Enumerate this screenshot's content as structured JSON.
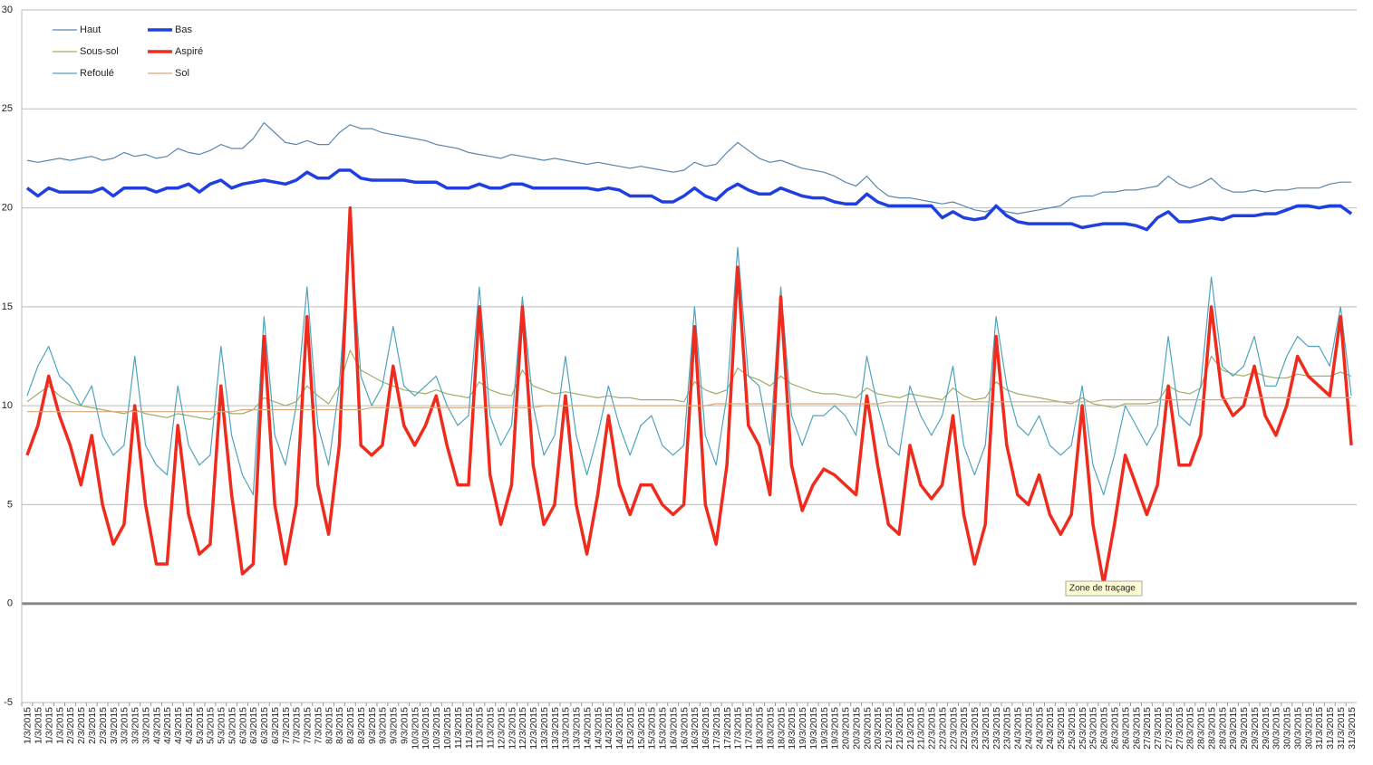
{
  "chart_data": {
    "type": "line",
    "tooltip": "Zone de traçage",
    "legend": "top-left",
    "grid": true,
    "ylim": [
      -5,
      30
    ],
    "yticks": [
      -5,
      0,
      5,
      10,
      15,
      20,
      25,
      30
    ],
    "categories": [
      "1/3/2015",
      "1/3/2015",
      "1/3/2015",
      "1/3/2015",
      "2/3/2015",
      "2/3/2015",
      "2/3/2015",
      "2/3/2015",
      "3/3/2015",
      "3/3/2015",
      "3/3/2015",
      "3/3/2015",
      "4/3/2015",
      "4/3/2015",
      "4/3/2015",
      "4/3/2015",
      "5/3/2015",
      "5/3/2015",
      "5/3/2015",
      "5/3/2015",
      "6/3/2015",
      "6/3/2015",
      "6/3/2015",
      "6/3/2015",
      "7/3/2015",
      "7/3/2015",
      "7/3/2015",
      "7/3/2015",
      "8/3/2015",
      "8/3/2015",
      "8/3/2015",
      "8/3/2015",
      "9/3/2015",
      "9/3/2015",
      "9/3/2015",
      "9/3/2015",
      "10/3/2015",
      "10/3/2015",
      "10/3/2015",
      "10/3/2015",
      "11/3/2015",
      "11/3/2015",
      "11/3/2015",
      "11/3/2015",
      "12/3/2015",
      "12/3/2015",
      "12/3/2015",
      "12/3/2015",
      "13/3/2015",
      "13/3/2015",
      "13/3/2015",
      "13/3/2015",
      "14/3/2015",
      "14/3/2015",
      "14/3/2015",
      "14/3/2015",
      "15/3/2015",
      "15/3/2015",
      "15/3/2015",
      "15/3/2015",
      "16/3/2015",
      "16/3/2015",
      "16/3/2015",
      "16/3/2015",
      "17/3/2015",
      "17/3/2015",
      "17/3/2015",
      "17/3/2015",
      "18/3/2015",
      "18/3/2015",
      "18/3/2015",
      "18/3/2015",
      "19/3/2015",
      "19/3/2015",
      "19/3/2015",
      "19/3/2015",
      "20/3/2015",
      "20/3/2015",
      "20/3/2015",
      "20/3/2015",
      "21/3/2015",
      "21/3/2015",
      "21/3/2015",
      "21/3/2015",
      "22/3/2015",
      "22/3/2015",
      "22/3/2015",
      "22/3/2015",
      "23/3/2015",
      "23/3/2015",
      "23/3/2015",
      "23/3/2015",
      "24/3/2015",
      "24/3/2015",
      "24/3/2015",
      "24/3/2015",
      "25/3/2015",
      "25/3/2015",
      "25/3/2015",
      "25/3/2015",
      "26/3/2015",
      "26/3/2015",
      "26/3/2015",
      "26/3/2015",
      "27/3/2015",
      "27/3/2015",
      "27/3/2015",
      "27/3/2015",
      "28/3/2015",
      "28/3/2015",
      "28/3/2015",
      "28/3/2015",
      "29/3/2015",
      "29/3/2015",
      "29/3/2015",
      "29/3/2015",
      "30/3/2015",
      "30/3/2015",
      "30/3/2015",
      "30/3/2015",
      "31/3/2015",
      "31/3/2015",
      "31/3/2015",
      "31/3/2015"
    ],
    "series": [
      {
        "name": "Haut",
        "color": "#5b87ad",
        "width": 1.2,
        "values": [
          22.4,
          22.3,
          22.4,
          22.5,
          22.4,
          22.5,
          22.6,
          22.4,
          22.5,
          22.8,
          22.6,
          22.7,
          22.5,
          22.6,
          23,
          22.8,
          22.7,
          22.9,
          23.2,
          23,
          23,
          23.5,
          24.3,
          23.8,
          23.3,
          23.2,
          23.4,
          23.2,
          23.2,
          23.8,
          24.2,
          24,
          24,
          23.8,
          23.7,
          23.6,
          23.5,
          23.4,
          23.2,
          23.1,
          23,
          22.8,
          22.7,
          22.6,
          22.5,
          22.7,
          22.6,
          22.5,
          22.4,
          22.5,
          22.4,
          22.3,
          22.2,
          22.3,
          22.2,
          22.1,
          22,
          22.1,
          22,
          21.9,
          21.8,
          21.9,
          22.3,
          22.1,
          22.2,
          22.8,
          23.3,
          22.9,
          22.5,
          22.3,
          22.4,
          22.2,
          22,
          21.9,
          21.8,
          21.6,
          21.3,
          21.1,
          21.6,
          21,
          20.6,
          20.5,
          20.5,
          20.4,
          20.3,
          20.2,
          20.3,
          20.1,
          19.9,
          19.8,
          20,
          19.8,
          19.7,
          19.8,
          19.9,
          20,
          20.1,
          20.5,
          20.6,
          20.6,
          20.8,
          20.8,
          20.9,
          20.9,
          21,
          21.1,
          21.6,
          21.2,
          21,
          21.2,
          21.5,
          21,
          20.8,
          20.8,
          20.9,
          20.8,
          20.9,
          20.9,
          21,
          21,
          21,
          21.2,
          21.3,
          21.3
        ]
      },
      {
        "name": "Bas",
        "color": "#1f3fe0",
        "width": 3.5,
        "values": [
          21,
          20.6,
          21,
          20.8,
          20.8,
          20.8,
          20.8,
          21,
          20.6,
          21,
          21,
          21,
          20.8,
          21,
          21,
          21.2,
          20.8,
          21.2,
          21.4,
          21,
          21.2,
          21.3,
          21.4,
          21.3,
          21.2,
          21.4,
          21.8,
          21.5,
          21.5,
          21.9,
          21.9,
          21.5,
          21.4,
          21.4,
          21.4,
          21.4,
          21.3,
          21.3,
          21.3,
          21,
          21,
          21,
          21.2,
          21,
          21,
          21.2,
          21.2,
          21,
          21,
          21,
          21,
          21,
          21,
          20.9,
          21,
          20.9,
          20.6,
          20.6,
          20.6,
          20.3,
          20.3,
          20.6,
          21,
          20.6,
          20.4,
          20.9,
          21.2,
          20.9,
          20.7,
          20.7,
          21,
          20.8,
          20.6,
          20.5,
          20.5,
          20.3,
          20.2,
          20.2,
          20.7,
          20.3,
          20.1,
          20.1,
          20.1,
          20.1,
          20.1,
          19.5,
          19.8,
          19.5,
          19.4,
          19.5,
          20.1,
          19.6,
          19.3,
          19.2,
          19.2,
          19.2,
          19.2,
          19.2,
          19,
          19.1,
          19.2,
          19.2,
          19.2,
          19.1,
          18.9,
          19.5,
          19.8,
          19.3,
          19.3,
          19.4,
          19.5,
          19.4,
          19.6,
          19.6,
          19.6,
          19.7,
          19.7,
          19.9,
          20.1,
          20.1,
          20,
          20.1,
          20.1,
          19.7
        ]
      },
      {
        "name": "Sous-sol",
        "color": "#9fae6a",
        "width": 1.2,
        "values": [
          10.2,
          10.6,
          11,
          10.5,
          10.2,
          10,
          9.9,
          9.8,
          9.7,
          9.6,
          9.8,
          9.6,
          9.5,
          9.4,
          9.6,
          9.5,
          9.4,
          9.3,
          9.8,
          9.6,
          9.6,
          9.8,
          10.4,
          10.2,
          10,
          10.2,
          11,
          10.5,
          10.1,
          11,
          12.8,
          11.8,
          11.5,
          11.2,
          11,
          10.8,
          10.7,
          10.6,
          10.8,
          10.6,
          10.5,
          10.4,
          11.2,
          10.8,
          10.6,
          10.5,
          11.8,
          11,
          10.8,
          10.6,
          10.7,
          10.6,
          10.5,
          10.4,
          10.5,
          10.4,
          10.4,
          10.3,
          10.3,
          10.3,
          10.3,
          10.2,
          11.2,
          10.8,
          10.6,
          10.8,
          11.9,
          11.5,
          11.3,
          11,
          11.5,
          11.1,
          10.9,
          10.7,
          10.6,
          10.6,
          10.5,
          10.4,
          10.9,
          10.6,
          10.5,
          10.4,
          10.6,
          10.5,
          10.4,
          10.3,
          10.9,
          10.5,
          10.3,
          10.4,
          11.2,
          10.8,
          10.6,
          10.5,
          10.4,
          10.3,
          10.2,
          10.1,
          10.4,
          10.1,
          10,
          9.9,
          10.1,
          10.1,
          10.1,
          10.2,
          11,
          10.7,
          10.6,
          10.9,
          12.5,
          11.8,
          11.6,
          11.5,
          11.7,
          11.5,
          11.4,
          11.4,
          11.6,
          11.5,
          11.5,
          11.5,
          11.7,
          11.5
        ]
      },
      {
        "name": "Aspiré",
        "color": "#ee2b1c",
        "width": 3.5,
        "values": [
          7.5,
          9,
          11.5,
          9.5,
          8,
          6,
          8.5,
          5,
          3,
          4,
          10,
          5,
          2,
          2,
          9,
          4.5,
          2.5,
          3,
          11,
          5.5,
          1.5,
          2,
          13.5,
          5,
          2,
          5,
          14.5,
          6,
          3.5,
          8,
          20,
          8,
          7.5,
          8,
          12,
          9,
          8,
          9,
          10.5,
          8,
          6,
          6,
          15,
          6.5,
          4,
          6,
          15,
          7,
          4,
          5,
          10.5,
          5,
          2.5,
          5.5,
          9.5,
          6,
          4.5,
          6,
          6,
          5,
          4.5,
          5,
          14,
          5,
          3,
          7,
          17,
          9,
          8,
          5.5,
          15.5,
          7,
          4.7,
          6,
          6.8,
          6.5,
          6,
          5.5,
          10.5,
          7,
          4,
          3.5,
          8,
          6,
          5.3,
          6,
          9.5,
          4.5,
          2,
          4,
          13.5,
          8,
          5.5,
          5,
          6.5,
          4.5,
          3.5,
          4.5,
          10,
          4,
          1,
          4,
          7.5,
          6,
          4.5,
          6,
          11,
          7,
          7,
          8.5,
          15,
          10.5,
          9.5,
          10,
          12,
          9.5,
          8.5,
          10,
          12.5,
          11.5,
          11,
          10.5,
          14.5,
          8
        ]
      },
      {
        "name": "Refoulé",
        "color": "#4fa3bd",
        "width": 1.2,
        "values": [
          10.5,
          12,
          13,
          11.5,
          11,
          10,
          11,
          8.5,
          7.5,
          8,
          12.5,
          8,
          7,
          6.5,
          11,
          8,
          7,
          7.5,
          13,
          8.5,
          6.5,
          5.5,
          14.5,
          8.5,
          7,
          10,
          16,
          9,
          7,
          11,
          19,
          11.5,
          10,
          11,
          14,
          11,
          10.5,
          11,
          11.5,
          10,
          9,
          9.5,
          16,
          9.5,
          8,
          9,
          15.5,
          10,
          7.5,
          8.5,
          12.5,
          8.5,
          6.5,
          8.5,
          11,
          9,
          7.5,
          9,
          9.5,
          8,
          7.5,
          8,
          15,
          8.5,
          7,
          10.5,
          18,
          11.5,
          11,
          8,
          16,
          9.5,
          8,
          9.5,
          9.5,
          10,
          9.5,
          8.5,
          12.5,
          10,
          8,
          7.5,
          11,
          9.5,
          8.5,
          9.5,
          12,
          8,
          6.5,
          8,
          14.5,
          11,
          9,
          8.5,
          9.5,
          8,
          7.5,
          8,
          11,
          7,
          5.5,
          7.5,
          10,
          9,
          8,
          9,
          13.5,
          9.5,
          9,
          11,
          16.5,
          12,
          11.5,
          12,
          13.5,
          11,
          11,
          12.5,
          13.5,
          13,
          13,
          12,
          15,
          10.5
        ]
      },
      {
        "name": "Sol",
        "color": "#d9a877",
        "width": 1.2,
        "values": [
          9.7,
          9.7,
          9.7,
          9.7,
          9.7,
          9.7,
          9.7,
          9.7,
          9.7,
          9.7,
          9.7,
          9.7,
          9.7,
          9.7,
          9.7,
          9.7,
          9.7,
          9.7,
          9.7,
          9.7,
          9.8,
          9.8,
          9.8,
          9.8,
          9.8,
          9.8,
          9.8,
          9.8,
          9.8,
          9.8,
          9.8,
          9.8,
          9.9,
          9.9,
          9.9,
          9.9,
          9.9,
          9.9,
          9.9,
          9.9,
          9.9,
          9.9,
          9.9,
          9.9,
          9.9,
          9.9,
          9.9,
          9.9,
          10,
          10,
          10,
          10,
          10,
          10,
          10,
          10,
          10,
          10,
          10,
          10,
          10,
          10,
          10,
          10,
          10.1,
          10.1,
          10.1,
          10.1,
          10.1,
          10.1,
          10.1,
          10.1,
          10.1,
          10.1,
          10.1,
          10.1,
          10.1,
          10.1,
          10.1,
          10.1,
          10.2,
          10.2,
          10.2,
          10.2,
          10.2,
          10.2,
          10.2,
          10.2,
          10.2,
          10.2,
          10.2,
          10.2,
          10.2,
          10.2,
          10.2,
          10.2,
          10.2,
          10.2,
          10.2,
          10.2,
          10.3,
          10.3,
          10.3,
          10.3,
          10.3,
          10.3,
          10.3,
          10.3,
          10.3,
          10.3,
          10.3,
          10.3,
          10.4,
          10.4,
          10.4,
          10.4,
          10.4,
          10.4,
          10.4,
          10.4,
          10.4,
          10.4,
          10.4,
          10.4
        ]
      }
    ]
  }
}
